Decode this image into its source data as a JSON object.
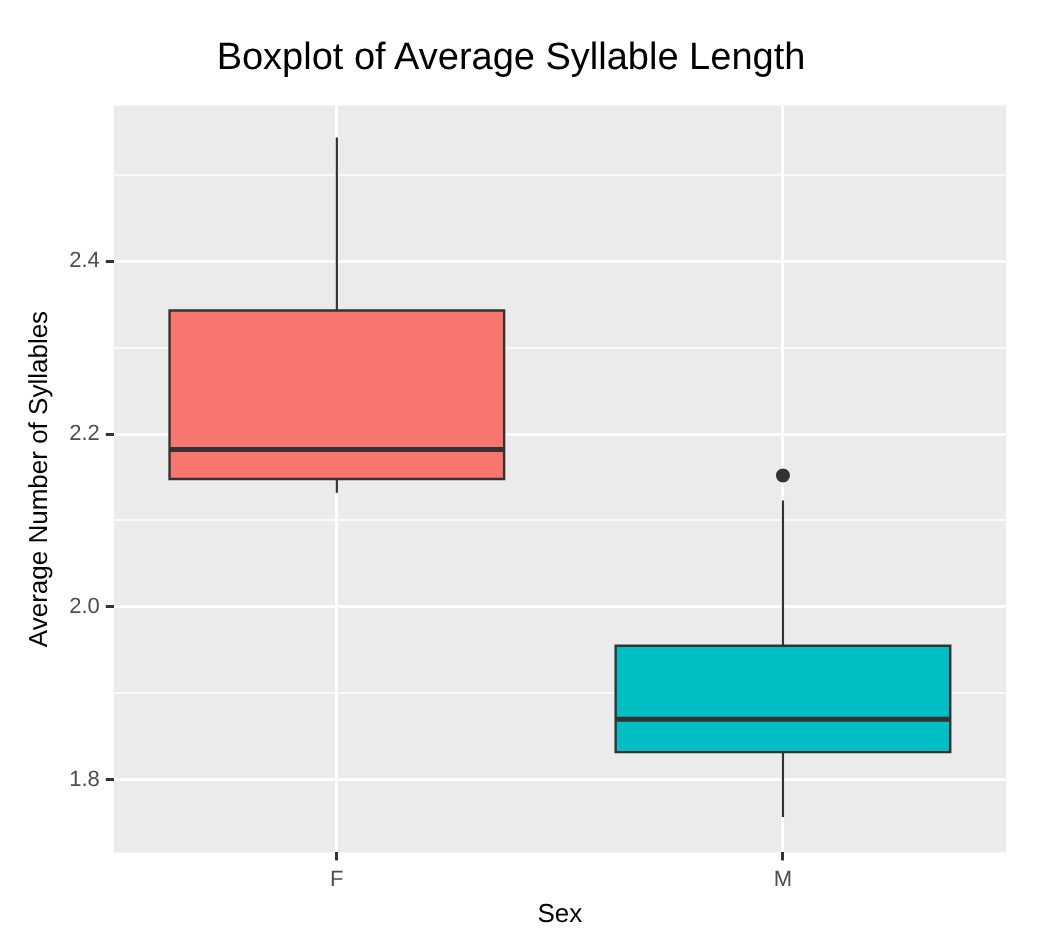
{
  "chart_data": {
    "type": "box",
    "title": "Boxplot of Average Syllable Length",
    "xlabel": "Sex",
    "ylabel": "Average Number of Syllables",
    "categories": [
      "F",
      "M"
    ],
    "colors": [
      "#f8766d",
      "#00bfc4"
    ],
    "boxes": [
      {
        "low": 2.132,
        "q1": 2.148,
        "median": 2.182,
        "q3": 2.343,
        "high": 2.543
      },
      {
        "low": 1.757,
        "q1": 1.832,
        "median": 1.87,
        "q3": 1.955,
        "high": 2.123,
        "outliers": [
          2.152
        ]
      }
    ],
    "ylim": [
      1.716,
      2.58
    ],
    "yticks": [
      1.8,
      {
        "value": 1.9,
        "label": null
      },
      {
        "value": 2.0,
        "label": "2.0"
      },
      {
        "value": 2.1,
        "label": null
      },
      2.2,
      {
        "value": 2.3,
        "label": null
      },
      2.4,
      {
        "value": 2.5,
        "label": null
      }
    ],
    "grid": true,
    "legend": false
  }
}
